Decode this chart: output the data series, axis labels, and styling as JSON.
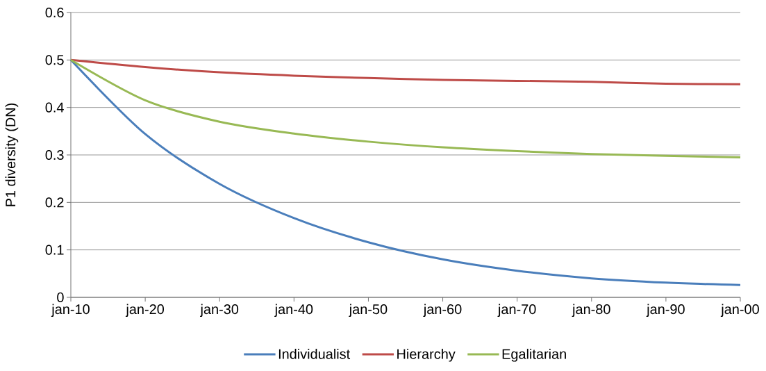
{
  "chart_data": {
    "type": "line",
    "ylabel": "P1 diversity (DN)",
    "categories": [
      "jan-10",
      "jan-20",
      "jan-30",
      "jan-40",
      "jan-50",
      "jan-60",
      "jan-70",
      "jan-80",
      "jan-90",
      "jan-00"
    ],
    "series": [
      {
        "name": "Individualist",
        "color": "#4a7ebb",
        "values": [
          0.5,
          0.344,
          0.239,
          0.167,
          0.116,
          0.08,
          0.056,
          0.04,
          0.031,
          0.026
        ]
      },
      {
        "name": "Hierarchy",
        "color": "#be4b48",
        "values": [
          0.5,
          0.485,
          0.474,
          0.467,
          0.462,
          0.458,
          0.456,
          0.454,
          0.45,
          0.449
        ]
      },
      {
        "name": "Egalitarian",
        "color": "#98b954",
        "values": [
          0.5,
          0.415,
          0.37,
          0.345,
          0.328,
          0.316,
          0.308,
          0.302,
          0.298,
          0.295
        ]
      }
    ],
    "ylim": [
      0,
      0.6
    ],
    "yticks": [
      0,
      0.1,
      0.2,
      0.3,
      0.4,
      0.5,
      0.6
    ],
    "grid": "y",
    "legend": "bottom",
    "marker": "none",
    "line_style": "solid"
  }
}
